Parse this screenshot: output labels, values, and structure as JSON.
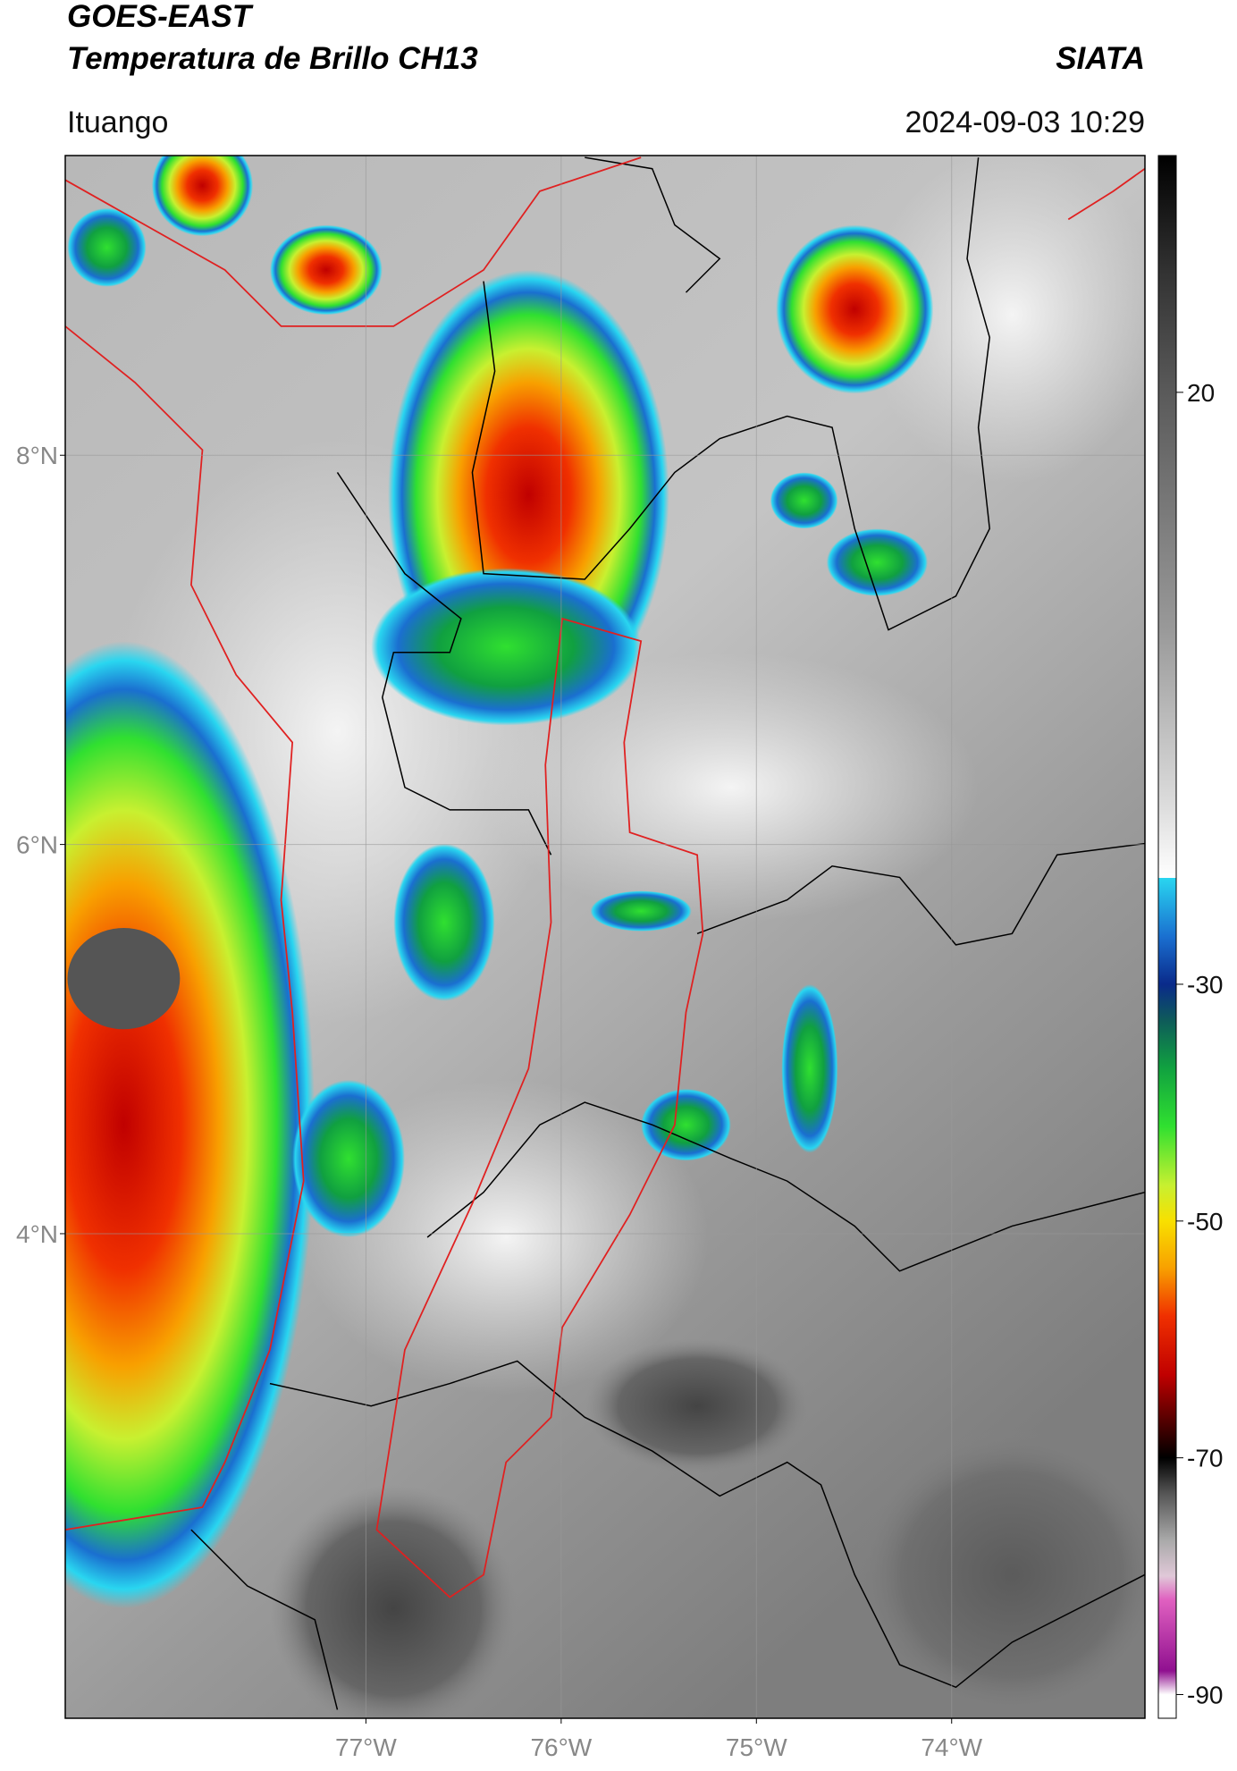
{
  "header": {
    "title": "GOES-EAST",
    "subtitle": "Temperatura de Brillo CH13",
    "source": "SIATA",
    "location": "Ituango",
    "datetime": "2024-09-03 10:29"
  },
  "map": {
    "xlim": [
      -78.54,
      -73.01
    ],
    "ylim": [
      1.51,
      9.54
    ],
    "xticks": [
      {
        "value": -77,
        "label": "77°W"
      },
      {
        "value": -76,
        "label": "76°W"
      },
      {
        "value": -75,
        "label": "75°W"
      },
      {
        "value": -74,
        "label": "74°W"
      }
    ],
    "yticks": [
      {
        "value": 8,
        "label": "8°N"
      },
      {
        "value": 6,
        "label": "6°N"
      },
      {
        "value": 4,
        "label": "4°N"
      }
    ],
    "grid": true
  },
  "colorbar": {
    "lim": [
      -92,
      40
    ],
    "ticks": [
      20,
      -30,
      -50,
      -70,
      -90
    ],
    "stops": [
      {
        "value": 40,
        "color": "#000000"
      },
      {
        "value": 30,
        "color": "#333333"
      },
      {
        "value": 20,
        "color": "#5a5a5a"
      },
      {
        "value": 0,
        "color": "#999999"
      },
      {
        "value": -15,
        "color": "#dddddd"
      },
      {
        "value": -21,
        "color": "#ffffff"
      },
      {
        "value": -21,
        "color": "#29d6f0"
      },
      {
        "value": -26,
        "color": "#1a6fd0"
      },
      {
        "value": -30,
        "color": "#0a2a8a"
      },
      {
        "value": -33,
        "color": "#0e5a5a"
      },
      {
        "value": -37,
        "color": "#10a040"
      },
      {
        "value": -42,
        "color": "#30e030"
      },
      {
        "value": -47,
        "color": "#c8f030"
      },
      {
        "value": -50,
        "color": "#f8e000"
      },
      {
        "value": -54,
        "color": "#f8a000"
      },
      {
        "value": -58,
        "color": "#f03000"
      },
      {
        "value": -63,
        "color": "#c00000"
      },
      {
        "value": -67,
        "color": "#500000"
      },
      {
        "value": -70,
        "color": "#000000"
      },
      {
        "value": -73,
        "color": "#555555"
      },
      {
        "value": -77,
        "color": "#aaaaaa"
      },
      {
        "value": -80,
        "color": "#e0c8d8"
      },
      {
        "value": -82,
        "color": "#e060c0"
      },
      {
        "value": -88,
        "color": "#901090"
      },
      {
        "value": -90,
        "color": "#ffffff"
      },
      {
        "value": -92,
        "color": "#ffffff"
      }
    ]
  }
}
